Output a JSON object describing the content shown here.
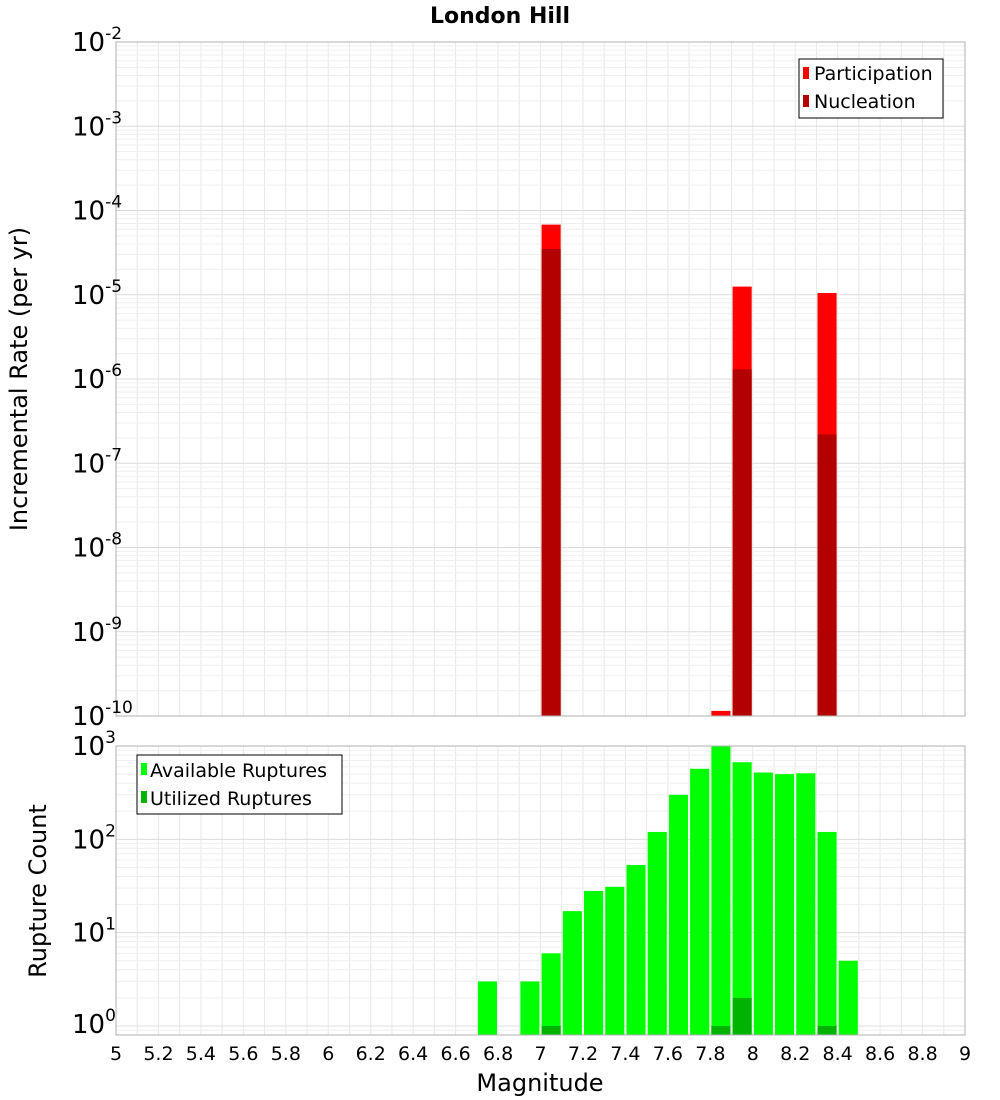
{
  "chart_data": [
    {
      "type": "bar",
      "title": "London Hill",
      "ylabel": "Incremental Rate (per yr)",
      "yscale": "log",
      "ylim": [
        1e-10,
        0.01
      ],
      "xlim": [
        5,
        9
      ],
      "grid": true,
      "legend_position": "top-right",
      "ytick_labels": [
        {
          "base": "10",
          "exp": "-10",
          "value": 1e-10
        },
        {
          "base": "10",
          "exp": "-9",
          "value": 1e-09
        },
        {
          "base": "10",
          "exp": "-8",
          "value": 1e-08
        },
        {
          "base": "10",
          "exp": "-7",
          "value": 1e-07
        },
        {
          "base": "10",
          "exp": "-6",
          "value": 1e-06
        },
        {
          "base": "10",
          "exp": "-5",
          "value": 1e-05
        },
        {
          "base": "10",
          "exp": "-4",
          "value": 0.0001
        },
        {
          "base": "10",
          "exp": "-3",
          "value": 0.001
        },
        {
          "base": "10",
          "exp": "-2",
          "value": 0.01
        }
      ],
      "series": [
        {
          "name": "Participation",
          "color": "#ff0000",
          "points": [
            {
              "x": 7.05,
              "y": 6.8e-05
            },
            {
              "x": 7.85,
              "y": 1.15e-10
            },
            {
              "x": 7.95,
              "y": 1.25e-05
            },
            {
              "x": 8.35,
              "y": 1.05e-05
            }
          ]
        },
        {
          "name": "Nucleation",
          "color": "#b30000",
          "points": [
            {
              "x": 7.05,
              "y": 3.5e-05
            },
            {
              "x": 7.95,
              "y": 1.3e-06
            },
            {
              "x": 8.35,
              "y": 2.2e-07
            }
          ]
        }
      ]
    },
    {
      "type": "bar",
      "ylabel": "Rupture Count",
      "xlabel": "Magnitude",
      "yscale": "log",
      "ylim": [
        0.8,
        1000
      ],
      "xlim": [
        5,
        9
      ],
      "grid": true,
      "legend_position": "top-left",
      "xtick_labels": [
        "5",
        "5.2",
        "5.4",
        "5.6",
        "5.8",
        "6",
        "6.2",
        "6.4",
        "6.6",
        "6.8",
        "7",
        "7.2",
        "7.4",
        "7.6",
        "7.8",
        "8",
        "8.2",
        "8.4",
        "8.6",
        "8.8",
        "9"
      ],
      "ytick_labels": [
        {
          "base": "10",
          "exp": "0",
          "value": 1
        },
        {
          "base": "10",
          "exp": "1",
          "value": 10
        },
        {
          "base": "10",
          "exp": "2",
          "value": 100
        },
        {
          "base": "10",
          "exp": "3",
          "value": 1000
        }
      ],
      "series": [
        {
          "name": "Available Ruptures",
          "color": "#00ff00",
          "points": [
            {
              "x": 6.75,
              "y": 3
            },
            {
              "x": 6.95,
              "y": 3
            },
            {
              "x": 7.05,
              "y": 6
            },
            {
              "x": 7.15,
              "y": 17
            },
            {
              "x": 7.25,
              "y": 28
            },
            {
              "x": 7.35,
              "y": 31
            },
            {
              "x": 7.45,
              "y": 53
            },
            {
              "x": 7.55,
              "y": 120
            },
            {
              "x": 7.65,
              "y": 300
            },
            {
              "x": 7.75,
              "y": 570
            },
            {
              "x": 7.85,
              "y": 1000
            },
            {
              "x": 7.95,
              "y": 670
            },
            {
              "x": 8.05,
              "y": 520
            },
            {
              "x": 8.15,
              "y": 500
            },
            {
              "x": 8.25,
              "y": 510
            },
            {
              "x": 8.35,
              "y": 120
            },
            {
              "x": 8.45,
              "y": 5
            }
          ]
        },
        {
          "name": "Utilized Ruptures",
          "color": "#00b300",
          "points": [
            {
              "x": 7.05,
              "y": 1
            },
            {
              "x": 7.85,
              "y": 1
            },
            {
              "x": 7.95,
              "y": 2
            },
            {
              "x": 8.35,
              "y": 1
            }
          ]
        }
      ]
    }
  ]
}
